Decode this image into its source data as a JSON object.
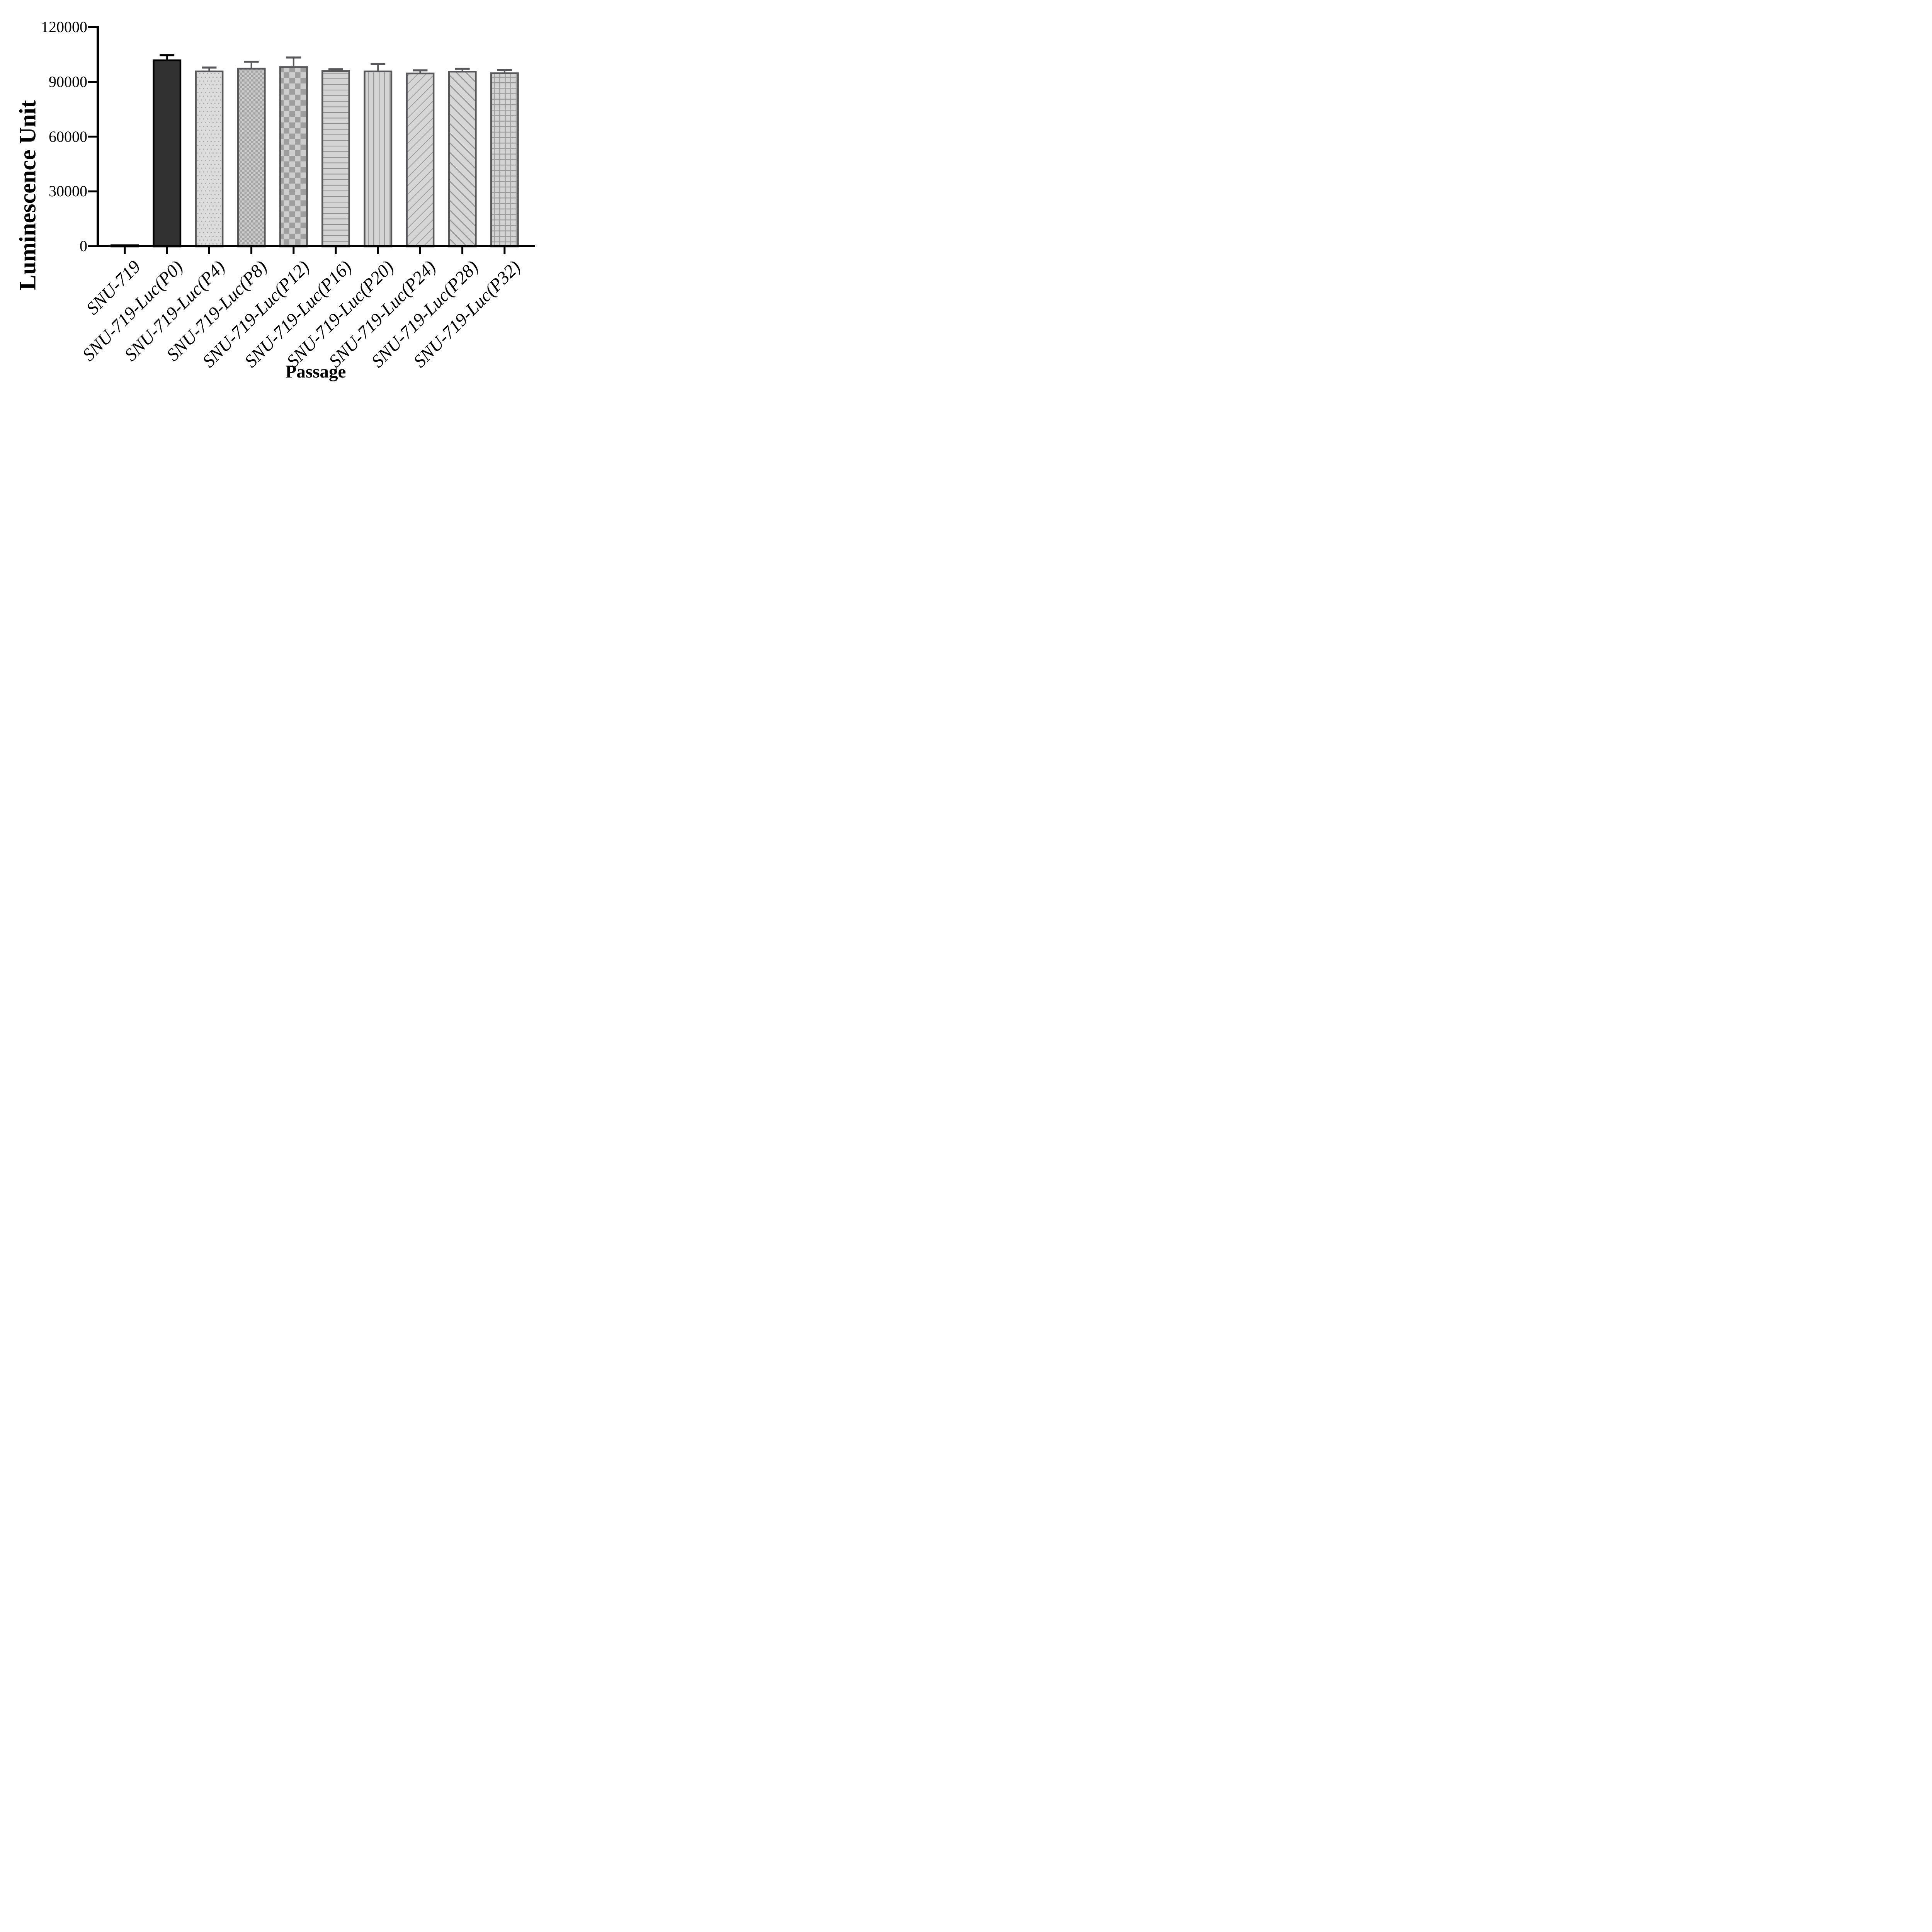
{
  "figure": {
    "background": "#ffffff"
  },
  "chart_data": {
    "type": "bar",
    "title": "",
    "xlabel": "Passage",
    "ylabel": "Luminescence Unit",
    "ylim": [
      0,
      120000
    ],
    "yticks": [
      0,
      30000,
      60000,
      90000,
      120000
    ],
    "ytick_labels": [
      "0",
      "30000",
      "60000",
      "90000",
      "120000"
    ],
    "x_tick_angle": -45,
    "grid": false,
    "legend": false,
    "axis_color": "#000000",
    "categories": [
      "SNU-719",
      "SNU-719-Luc(P0)",
      "SNU-719-Luc(P4)",
      "SNU-719-Luc(P8)",
      "SNU-719-Luc(P12)",
      "SNU-719-Luc(P16)",
      "SNU-719-Luc(P20)",
      "SNU-719-Luc(P24)",
      "SNU-719-Luc(P28)",
      "SNU-719-Luc(P32)"
    ],
    "values": [
      500,
      101800,
      95700,
      97200,
      98100,
      95900,
      95700,
      94600,
      95600,
      94700
    ],
    "errors": [
      0,
      2800,
      2100,
      3800,
      5200,
      1000,
      4100,
      1700,
      1500,
      1800
    ],
    "bars": [
      {
        "label": "SNU-719",
        "value": 500,
        "error": 0,
        "pattern": "solid",
        "fill": "#000000",
        "pattern_color": "#000000",
        "border": "#000000",
        "error_color": "#000000"
      },
      {
        "label": "SNU-719-Luc(P0)",
        "value": 101800,
        "error": 2800,
        "pattern": "solid",
        "fill": "#313131",
        "pattern_color": "#313131",
        "border": "#000000",
        "error_color": "#000000"
      },
      {
        "label": "SNU-719-Luc(P4)",
        "value": 95700,
        "error": 2100,
        "pattern": "dots",
        "fill": "#dcdcdc",
        "pattern_color": "#a6a6a6",
        "border": "#58585a",
        "error_color": "#58585a"
      },
      {
        "label": "SNU-719-Luc(P8)",
        "value": 97200,
        "error": 3800,
        "pattern": "checker-fine",
        "fill": "#cbcbcb",
        "pattern_color": "#a4a4a4",
        "border": "#58585a",
        "error_color": "#58585a"
      },
      {
        "label": "SNU-719-Luc(P12)",
        "value": 98100,
        "error": 5200,
        "pattern": "checker-coarse",
        "fill": "#cdcdcd",
        "pattern_color": "#9e9e9e",
        "border": "#58585a",
        "error_color": "#58585a"
      },
      {
        "label": "SNU-719-Luc(P16)",
        "value": 95900,
        "error": 1000,
        "pattern": "h-lines",
        "fill": "#d4d4d4",
        "pattern_color": "#8f8f8f",
        "border": "#58585a",
        "error_color": "#58585a"
      },
      {
        "label": "SNU-719-Luc(P20)",
        "value": 95700,
        "error": 4100,
        "pattern": "v-lines",
        "fill": "#d4d4d4",
        "pattern_color": "#9a9a9a",
        "border": "#58585a",
        "error_color": "#58585a"
      },
      {
        "label": "SNU-719-Luc(P24)",
        "value": 94600,
        "error": 1700,
        "pattern": "diag-up",
        "fill": "#d6d6d6",
        "pattern_color": "#9a9a9a",
        "border": "#58585a",
        "error_color": "#58585a"
      },
      {
        "label": "SNU-719-Luc(P28)",
        "value": 95600,
        "error": 1500,
        "pattern": "diag-down",
        "fill": "#d6d6d6",
        "pattern_color": "#989898",
        "border": "#58585a",
        "error_color": "#58585a"
      },
      {
        "label": "SNU-719-Luc(P32)",
        "value": 94700,
        "error": 1800,
        "pattern": "grid",
        "fill": "#d4d4d4",
        "pattern_color": "#9a9a9a",
        "border": "#58585a",
        "error_color": "#58585a"
      }
    ]
  }
}
